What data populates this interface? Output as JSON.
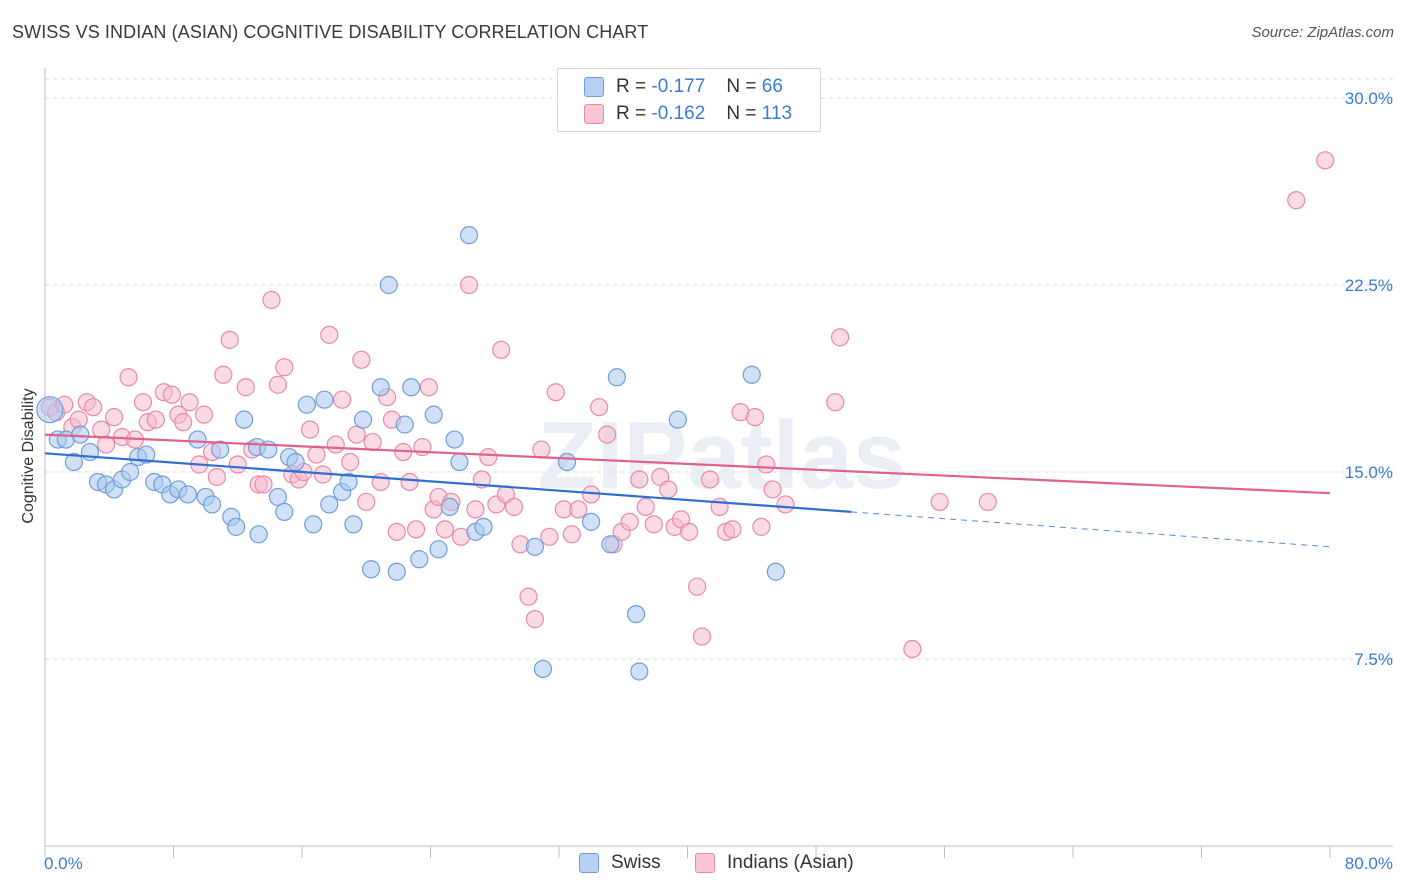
{
  "title": "SWISS VS INDIAN (ASIAN) COGNITIVE DISABILITY CORRELATION CHART",
  "source": "Source: ZipAtlas.com",
  "watermark": "ZIPatlas",
  "colors": {
    "swiss_fill": "#a9c8f0",
    "swiss_stroke": "#6f9fd8",
    "swiss_line": "#2f6fd0",
    "indian_fill": "#f6bccd",
    "indian_stroke": "#e88aa8",
    "indian_line": "#e0608e",
    "tick_label": "#3a7bd5",
    "grid": "#d9d9d9"
  },
  "legend": {
    "r_label": "R =",
    "n_label": "N =",
    "swiss": {
      "r": "-0.177",
      "n": "66"
    },
    "indian": {
      "r": "-0.162",
      "n": "113"
    }
  },
  "chart_data": {
    "type": "scatter",
    "title": "SWISS VS INDIAN (ASIAN) COGNITIVE DISABILITY CORRELATION CHART",
    "xlabel": "",
    "ylabel": "Cognitive Disability",
    "xlim": [
      0,
      80
    ],
    "ylim": [
      0,
      31.5
    ],
    "x_tick_labels": [
      "0.0%",
      "80.0%"
    ],
    "y_ticks": [
      7.5,
      15.0,
      22.5,
      30.0
    ],
    "y_tick_labels": [
      "7.5%",
      "15.0%",
      "22.5%",
      "30.0%"
    ],
    "grid": "horizontal dashed",
    "legend_position": "top-center",
    "series": [
      {
        "name": "Swiss",
        "trend": {
          "x": [
            0,
            50.2
          ],
          "y": [
            15.75,
            13.4
          ],
          "dashed_to": [
            80,
            12.0
          ]
        },
        "points": [
          [
            0.3,
            17.5
          ],
          [
            0.8,
            16.3
          ],
          [
            1.3,
            16.3
          ],
          [
            1.8,
            15.4
          ],
          [
            2.2,
            16.5
          ],
          [
            2.8,
            15.8
          ],
          [
            3.3,
            14.6
          ],
          [
            3.8,
            14.5
          ],
          [
            4.3,
            14.3
          ],
          [
            4.8,
            14.7
          ],
          [
            5.3,
            15.0
          ],
          [
            5.8,
            15.6
          ],
          [
            6.3,
            15.7
          ],
          [
            6.8,
            14.6
          ],
          [
            7.3,
            14.5
          ],
          [
            7.8,
            14.1
          ],
          [
            8.3,
            14.3
          ],
          [
            8.9,
            14.1
          ],
          [
            9.5,
            16.3
          ],
          [
            10.0,
            14.0
          ],
          [
            10.4,
            13.7
          ],
          [
            10.9,
            15.9
          ],
          [
            11.6,
            13.2
          ],
          [
            11.9,
            12.8
          ],
          [
            12.4,
            17.1
          ],
          [
            13.2,
            16.0
          ],
          [
            13.3,
            12.5
          ],
          [
            13.9,
            15.9
          ],
          [
            14.5,
            14.0
          ],
          [
            14.9,
            13.4
          ],
          [
            15.2,
            15.6
          ],
          [
            15.6,
            15.4
          ],
          [
            16.3,
            17.7
          ],
          [
            16.7,
            12.9
          ],
          [
            17.4,
            17.9
          ],
          [
            17.7,
            13.7
          ],
          [
            18.5,
            14.2
          ],
          [
            18.9,
            14.6
          ],
          [
            19.2,
            12.9
          ],
          [
            19.8,
            17.1
          ],
          [
            20.3,
            11.1
          ],
          [
            20.9,
            18.4
          ],
          [
            21.4,
            22.5
          ],
          [
            21.9,
            11.0
          ],
          [
            22.4,
            16.9
          ],
          [
            22.8,
            18.4
          ],
          [
            23.3,
            11.5
          ],
          [
            24.2,
            17.3
          ],
          [
            24.5,
            11.9
          ],
          [
            25.2,
            13.6
          ],
          [
            25.5,
            16.3
          ],
          [
            25.8,
            15.4
          ],
          [
            26.4,
            24.5
          ],
          [
            26.8,
            12.6
          ],
          [
            27.3,
            12.8
          ],
          [
            30.5,
            12.0
          ],
          [
            31.0,
            7.1
          ],
          [
            32.5,
            15.4
          ],
          [
            34.0,
            13.0
          ],
          [
            35.2,
            12.1
          ],
          [
            35.6,
            18.8
          ],
          [
            36.8,
            9.3
          ],
          [
            37.0,
            7.0
          ],
          [
            39.4,
            17.1
          ],
          [
            44.0,
            18.9
          ],
          [
            45.5,
            11.0
          ]
        ]
      },
      {
        "name": "Indians (Asian)",
        "trend": {
          "x": [
            0,
            80
          ],
          "y": [
            16.5,
            14.15
          ]
        },
        "points": [
          [
            0.3,
            17.6
          ],
          [
            0.7,
            17.4
          ],
          [
            1.2,
            17.7
          ],
          [
            1.7,
            16.8
          ],
          [
            2.1,
            17.1
          ],
          [
            2.6,
            17.8
          ],
          [
            3.0,
            17.6
          ],
          [
            3.5,
            16.7
          ],
          [
            3.8,
            16.1
          ],
          [
            4.3,
            17.2
          ],
          [
            4.8,
            16.4
          ],
          [
            5.2,
            18.8
          ],
          [
            5.6,
            16.3
          ],
          [
            6.1,
            17.8
          ],
          [
            6.4,
            17.0
          ],
          [
            6.9,
            17.1
          ],
          [
            7.4,
            18.2
          ],
          [
            7.9,
            18.1
          ],
          [
            8.3,
            17.3
          ],
          [
            8.6,
            17.0
          ],
          [
            9.0,
            17.8
          ],
          [
            9.6,
            15.3
          ],
          [
            9.9,
            17.3
          ],
          [
            10.4,
            15.8
          ],
          [
            10.7,
            14.8
          ],
          [
            11.1,
            18.9
          ],
          [
            11.5,
            20.3
          ],
          [
            12.0,
            15.3
          ],
          [
            12.5,
            18.4
          ],
          [
            12.9,
            15.9
          ],
          [
            13.3,
            14.5
          ],
          [
            13.6,
            14.5
          ],
          [
            14.1,
            21.9
          ],
          [
            14.5,
            18.5
          ],
          [
            14.9,
            19.2
          ],
          [
            15.4,
            14.9
          ],
          [
            15.8,
            14.7
          ],
          [
            16.1,
            15.0
          ],
          [
            16.5,
            16.7
          ],
          [
            16.9,
            15.7
          ],
          [
            17.3,
            14.9
          ],
          [
            17.7,
            20.5
          ],
          [
            18.1,
            16.1
          ],
          [
            18.5,
            17.9
          ],
          [
            19.0,
            15.4
          ],
          [
            19.4,
            16.5
          ],
          [
            19.7,
            19.5
          ],
          [
            20.0,
            13.8
          ],
          [
            20.4,
            16.2
          ],
          [
            20.9,
            14.6
          ],
          [
            21.3,
            18.0
          ],
          [
            21.6,
            17.1
          ],
          [
            21.9,
            12.6
          ],
          [
            22.3,
            15.8
          ],
          [
            22.7,
            14.6
          ],
          [
            23.1,
            12.7
          ],
          [
            23.5,
            16.0
          ],
          [
            23.9,
            18.4
          ],
          [
            24.2,
            13.5
          ],
          [
            24.5,
            14.0
          ],
          [
            24.9,
            12.7
          ],
          [
            25.3,
            13.8
          ],
          [
            25.9,
            12.4
          ],
          [
            26.4,
            22.5
          ],
          [
            26.8,
            13.5
          ],
          [
            27.2,
            14.7
          ],
          [
            27.6,
            15.6
          ],
          [
            28.1,
            13.7
          ],
          [
            28.4,
            19.9
          ],
          [
            28.7,
            14.1
          ],
          [
            29.2,
            13.6
          ],
          [
            29.6,
            12.1
          ],
          [
            30.1,
            10.0
          ],
          [
            30.5,
            9.1
          ],
          [
            30.9,
            15.9
          ],
          [
            31.4,
            12.4
          ],
          [
            31.8,
            18.2
          ],
          [
            32.3,
            13.5
          ],
          [
            32.8,
            12.5
          ],
          [
            33.2,
            13.5
          ],
          [
            34.0,
            14.1
          ],
          [
            34.5,
            17.6
          ],
          [
            35.0,
            16.5
          ],
          [
            35.4,
            12.1
          ],
          [
            35.9,
            12.6
          ],
          [
            36.4,
            13.0
          ],
          [
            37.0,
            14.7
          ],
          [
            37.4,
            13.6
          ],
          [
            37.9,
            12.9
          ],
          [
            38.3,
            14.8
          ],
          [
            38.8,
            14.3
          ],
          [
            39.2,
            12.8
          ],
          [
            39.6,
            13.1
          ],
          [
            40.1,
            12.6
          ],
          [
            40.6,
            10.4
          ],
          [
            40.9,
            8.4
          ],
          [
            41.4,
            14.7
          ],
          [
            42.0,
            13.6
          ],
          [
            42.4,
            12.6
          ],
          [
            42.8,
            12.7
          ],
          [
            43.3,
            17.4
          ],
          [
            44.2,
            17.2
          ],
          [
            44.6,
            12.8
          ],
          [
            44.9,
            15.3
          ],
          [
            45.3,
            14.3
          ],
          [
            46.1,
            13.7
          ],
          [
            49.2,
            17.8
          ],
          [
            49.5,
            20.4
          ],
          [
            54.0,
            7.9
          ],
          [
            55.7,
            13.8
          ],
          [
            58.7,
            13.8
          ],
          [
            77.9,
            25.9
          ],
          [
            79.7,
            27.5
          ]
        ]
      }
    ]
  },
  "bottom_legend": {
    "swiss_label": "Swiss",
    "indian_label": "Indians (Asian)"
  }
}
